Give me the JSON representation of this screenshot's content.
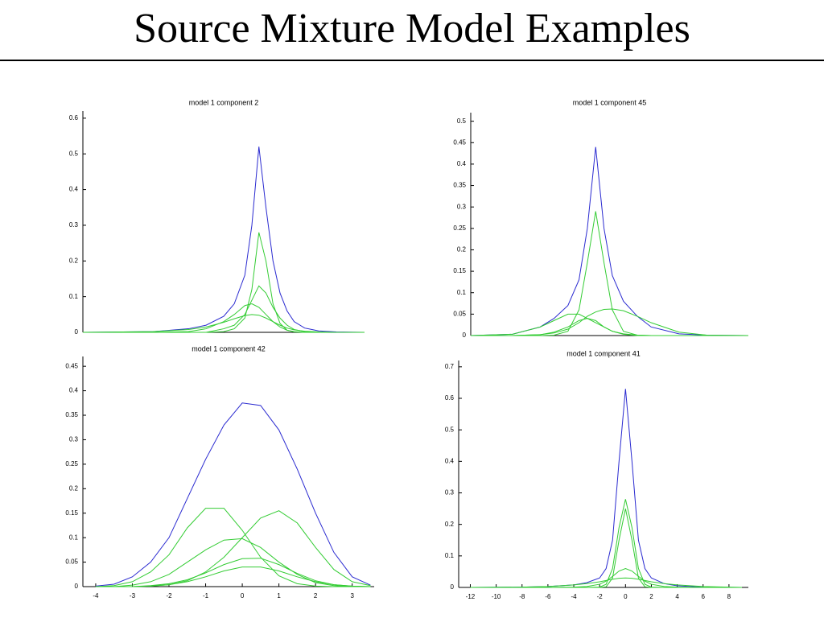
{
  "title": "Source Mixture Model Examples",
  "chart_data": [
    {
      "type": "line",
      "title": "model 1 component 2",
      "x": [
        -5,
        -3,
        -2,
        -1.5,
        -1,
        -0.7,
        -0.4,
        -0.2,
        0,
        0.2,
        0.4,
        0.6,
        0.8,
        1,
        1.3,
        1.7,
        2.2,
        3
      ],
      "xlim": [
        -5,
        3
      ],
      "ylim": [
        0,
        0.62
      ],
      "yticks": [
        0,
        0.1,
        0.2,
        0.3,
        0.4,
        0.5,
        0.6
      ],
      "series": [
        {
          "color": "#2a2ad0",
          "values": [
            0,
            0.002,
            0.01,
            0.02,
            0.045,
            0.08,
            0.16,
            0.3,
            0.52,
            0.35,
            0.2,
            0.11,
            0.06,
            0.03,
            0.012,
            0.004,
            0.001,
            0
          ]
        },
        {
          "color": "#33cc33",
          "values": [
            0,
            0,
            0,
            0,
            0.002,
            0.01,
            0.04,
            0.12,
            0.28,
            0.2,
            0.08,
            0.025,
            0.006,
            0.001,
            0,
            0,
            0,
            0
          ]
        },
        {
          "color": "#33cc33",
          "values": [
            0,
            0,
            0,
            0,
            0.01,
            0.02,
            0.05,
            0.09,
            0.13,
            0.11,
            0.07,
            0.04,
            0.02,
            0.008,
            0.002,
            0,
            0,
            0
          ]
        },
        {
          "color": "#33cc33",
          "values": [
            0,
            0,
            0.002,
            0.01,
            0.03,
            0.05,
            0.075,
            0.08,
            0.07,
            0.05,
            0.03,
            0.015,
            0.006,
            0.002,
            0,
            0,
            0,
            0
          ]
        },
        {
          "color": "#33cc33",
          "values": [
            0,
            0.002,
            0.008,
            0.015,
            0.028,
            0.038,
            0.047,
            0.05,
            0.048,
            0.04,
            0.03,
            0.02,
            0.012,
            0.007,
            0.003,
            0.001,
            0,
            0
          ]
        }
      ]
    },
    {
      "type": "line",
      "title": "model 1 component 45",
      "x": [
        -4.5,
        -3,
        -2,
        -1.5,
        -1,
        -0.6,
        -0.3,
        0,
        0.3,
        0.6,
        1,
        1.5,
        2,
        3,
        4,
        5.5
      ],
      "xlim": [
        -4.5,
        5.5
      ],
      "ylim": [
        0,
        0.52
      ],
      "yticks": [
        0,
        0.05,
        0.1,
        0.15,
        0.2,
        0.25,
        0.3,
        0.35,
        0.4,
        0.45,
        0.5
      ],
      "series": [
        {
          "color": "#2a2ad0",
          "values": [
            0,
            0.003,
            0.02,
            0.04,
            0.07,
            0.13,
            0.25,
            0.44,
            0.25,
            0.14,
            0.08,
            0.045,
            0.02,
            0.004,
            0.001,
            0
          ]
        },
        {
          "color": "#33cc33",
          "values": [
            0,
            0,
            0,
            0.001,
            0.01,
            0.06,
            0.17,
            0.29,
            0.17,
            0.06,
            0.01,
            0.001,
            0,
            0,
            0,
            0
          ]
        },
        {
          "color": "#33cc33",
          "values": [
            0,
            0.003,
            0.02,
            0.035,
            0.05,
            0.05,
            0.04,
            0.03,
            0.02,
            0.01,
            0.004,
            0.001,
            0,
            0,
            0,
            0
          ]
        },
        {
          "color": "#33cc33",
          "values": [
            0,
            0,
            0.002,
            0.008,
            0.02,
            0.035,
            0.04,
            0.035,
            0.02,
            0.01,
            0.003,
            0,
            0,
            0,
            0,
            0
          ]
        },
        {
          "color": "#33cc33",
          "values": [
            0,
            0,
            0.002,
            0.006,
            0.015,
            0.03,
            0.045,
            0.055,
            0.061,
            0.062,
            0.058,
            0.045,
            0.03,
            0.008,
            0.001,
            0
          ]
        }
      ]
    },
    {
      "type": "line",
      "title": "model 1 component 42",
      "x": [
        -4,
        -3.5,
        -3,
        -2.5,
        -2,
        -1.5,
        -1,
        -0.5,
        0,
        0.5,
        1,
        1.5,
        2,
        2.5,
        3,
        3.5
      ],
      "xlim": [
        -4.35,
        3.6
      ],
      "xticks": [
        -4,
        -3,
        -2,
        -1,
        0,
        1,
        2,
        3
      ],
      "ylim": [
        0,
        0.47
      ],
      "yticks": [
        0,
        0.05,
        0.1,
        0.15,
        0.2,
        0.25,
        0.3,
        0.35,
        0.4,
        0.45
      ],
      "series": [
        {
          "color": "#2a2ad0",
          "values": [
            0.001,
            0.005,
            0.02,
            0.05,
            0.1,
            0.18,
            0.26,
            0.33,
            0.375,
            0.37,
            0.32,
            0.24,
            0.15,
            0.07,
            0.02,
            0.003
          ]
        },
        {
          "color": "#33cc33",
          "values": [
            0,
            0.002,
            0.01,
            0.03,
            0.065,
            0.12,
            0.16,
            0.16,
            0.115,
            0.06,
            0.022,
            0.006,
            0.001,
            0,
            0,
            0
          ]
        },
        {
          "color": "#33cc33",
          "values": [
            0,
            0,
            0,
            0.001,
            0.004,
            0.012,
            0.03,
            0.06,
            0.1,
            0.14,
            0.155,
            0.13,
            0.08,
            0.035,
            0.01,
            0.002
          ]
        },
        {
          "color": "#33cc33",
          "values": [
            0,
            0,
            0.003,
            0.01,
            0.025,
            0.05,
            0.075,
            0.095,
            0.098,
            0.08,
            0.05,
            0.025,
            0.008,
            0.002,
            0,
            0
          ]
        },
        {
          "color": "#33cc33",
          "values": [
            0,
            0,
            0,
            0.002,
            0.006,
            0.014,
            0.028,
            0.045,
            0.057,
            0.058,
            0.045,
            0.027,
            0.012,
            0.004,
            0.001,
            0
          ]
        },
        {
          "color": "#33cc33",
          "values": [
            0,
            0,
            0,
            0.001,
            0.004,
            0.01,
            0.02,
            0.032,
            0.04,
            0.04,
            0.032,
            0.02,
            0.01,
            0.004,
            0.001,
            0
          ]
        }
      ]
    },
    {
      "type": "line",
      "title": "model 1 component 41",
      "x": [
        -12,
        -8,
        -6,
        -4,
        -3,
        -2,
        -1.5,
        -1,
        -0.5,
        0,
        0.5,
        1,
        1.5,
        2,
        3,
        4,
        6,
        9
      ],
      "xlim": [
        -12.9,
        9.5
      ],
      "xticks": [
        -12,
        -10,
        -8,
        -6,
        -4,
        -2,
        0,
        2,
        4,
        6,
        8
      ],
      "ylim": [
        0,
        0.72
      ],
      "yticks": [
        0,
        0.1,
        0.2,
        0.3,
        0.4,
        0.5,
        0.6,
        0.7
      ],
      "series": [
        {
          "color": "#2a2ad0",
          "values": [
            0,
            0.001,
            0.003,
            0.008,
            0.015,
            0.03,
            0.06,
            0.15,
            0.4,
            0.63,
            0.4,
            0.15,
            0.06,
            0.03,
            0.012,
            0.005,
            0.001,
            0
          ]
        },
        {
          "color": "#33cc33",
          "values": [
            0,
            0,
            0,
            0,
            0,
            0.001,
            0.01,
            0.06,
            0.19,
            0.28,
            0.19,
            0.06,
            0.01,
            0.001,
            0,
            0,
            0,
            0
          ]
        },
        {
          "color": "#33cc33",
          "values": [
            0,
            0,
            0,
            0,
            0,
            0,
            0.002,
            0.03,
            0.15,
            0.25,
            0.15,
            0.03,
            0.002,
            0,
            0,
            0,
            0,
            0
          ]
        },
        {
          "color": "#33cc33",
          "values": [
            0,
            0,
            0,
            0.001,
            0.003,
            0.01,
            0.02,
            0.035,
            0.052,
            0.06,
            0.052,
            0.035,
            0.02,
            0.01,
            0.003,
            0.001,
            0,
            0
          ]
        },
        {
          "color": "#33cc33",
          "values": [
            0,
            0.001,
            0.003,
            0.008,
            0.012,
            0.018,
            0.022,
            0.026,
            0.029,
            0.03,
            0.029,
            0.026,
            0.022,
            0.018,
            0.012,
            0.008,
            0.003,
            0
          ]
        }
      ]
    }
  ]
}
